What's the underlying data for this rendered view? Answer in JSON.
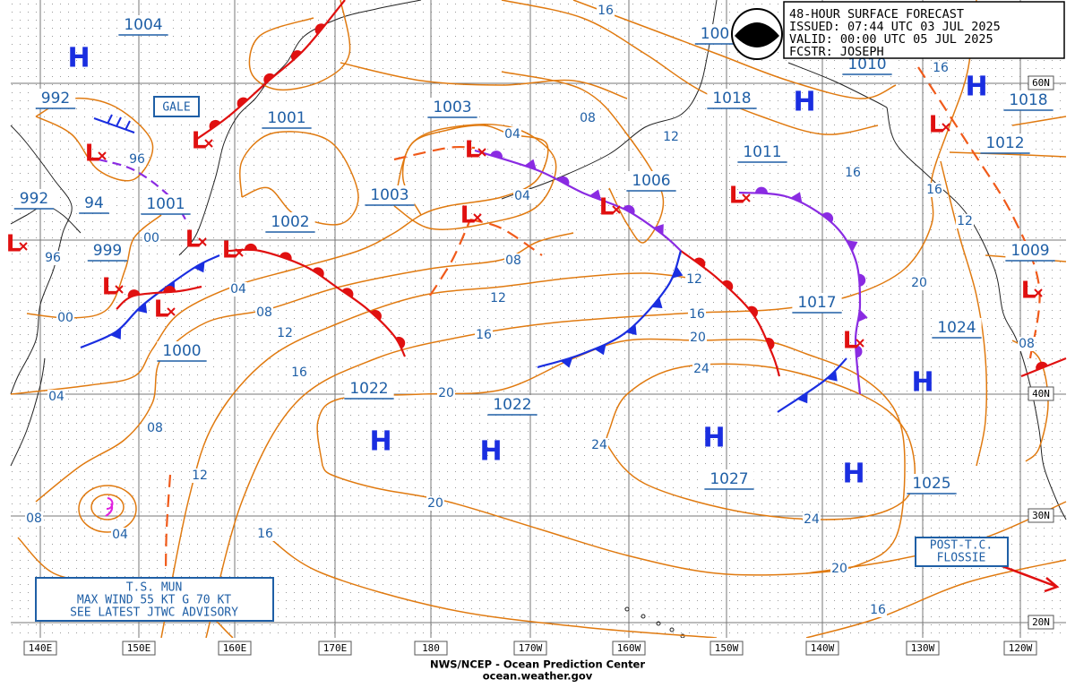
{
  "header": {
    "title": "48-HOUR SURFACE FORECAST",
    "issued": "ISSUED: 07:44 UTC 03 JUL 2025",
    "valid": "VALID:  00:00 UTC 05 JUL 2025",
    "forecaster": "FCSTR: JOSEPH"
  },
  "footer": {
    "agency": "NWS/NCEP - Ocean Prediction Center",
    "url": "ocean.weather.gov"
  },
  "longitudes": [
    "140E",
    "150E",
    "160E",
    "170E",
    "180",
    "170W",
    "160W",
    "150W",
    "140W",
    "130W",
    "120W"
  ],
  "latitudes": [
    "60N",
    "40N",
    "30N",
    "20N"
  ],
  "pressure_labels": [
    "1004",
    "992",
    "1001",
    "1003",
    "1003",
    "1006",
    "1018",
    "1011",
    "1010",
    "100",
    "1018",
    "1012",
    "1009",
    "1024",
    "1017",
    "1022",
    "1022",
    "1027",
    "1025",
    "1000",
    "999",
    "1001",
    "1002",
    "992",
    "94"
  ],
  "isobar_labels": [
    "16",
    "04",
    "08",
    "12",
    "16",
    "16",
    "16",
    "12",
    "04",
    "08",
    "12",
    "16",
    "12",
    "16",
    "20",
    "24",
    "20",
    "08",
    "20",
    "24",
    "24",
    "20",
    "20",
    "16",
    "16",
    "12",
    "08",
    "04",
    "00",
    "96",
    "00",
    "04",
    "08",
    "12",
    "16",
    "96",
    "08",
    "04"
  ],
  "highs": [
    "H",
    "H",
    "H",
    "H",
    "H",
    "H",
    "H",
    "H"
  ],
  "lows": [
    "L",
    "L",
    "L",
    "L",
    "L",
    "L",
    "L",
    "L",
    "L",
    "L",
    "L",
    "L",
    "L",
    "L"
  ],
  "annotations": {
    "gale": "GALE",
    "storm": [
      "T.S. MUN",
      "MAX WIND 55 KT G 70 KT",
      "SEE LATEST JTWC ADVISORY"
    ],
    "post_tc": [
      "POST-T.C.",
      "FLOSSIE"
    ]
  }
}
